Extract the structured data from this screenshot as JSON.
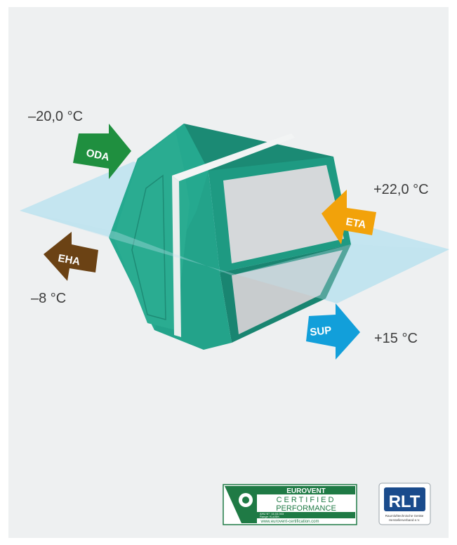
{
  "labels": {
    "oda_temp": "–20,0 °C",
    "eta_temp": "+22,0 °C",
    "eha_temp": "–8 °C",
    "sup_temp": "+15 °C",
    "oda": "ODA",
    "eta": "ETA",
    "eha": "EHA",
    "sup": "SUP"
  },
  "colors": {
    "oda": "#1f8f3f",
    "eta": "#f2a20a",
    "eha": "#6b4214",
    "sup": "#129fda",
    "body": "#1f9a83",
    "plane": "#bfe3ef",
    "panel": "#eef0f1"
  },
  "logos": {
    "eurovent": {
      "title": "EUROVENT",
      "line2": "CERTIFIED",
      "line3": "PERFORMANCE",
      "small1": "AHU N°: 16.03.003",
      "small2": "Range: KLASIK",
      "url": "www.eurovent-certification.com"
    },
    "rlt": {
      "mark": "RLT",
      "line1": "Raumlufttechnische Geräte",
      "line2": "Herstellerverband e.V."
    }
  }
}
